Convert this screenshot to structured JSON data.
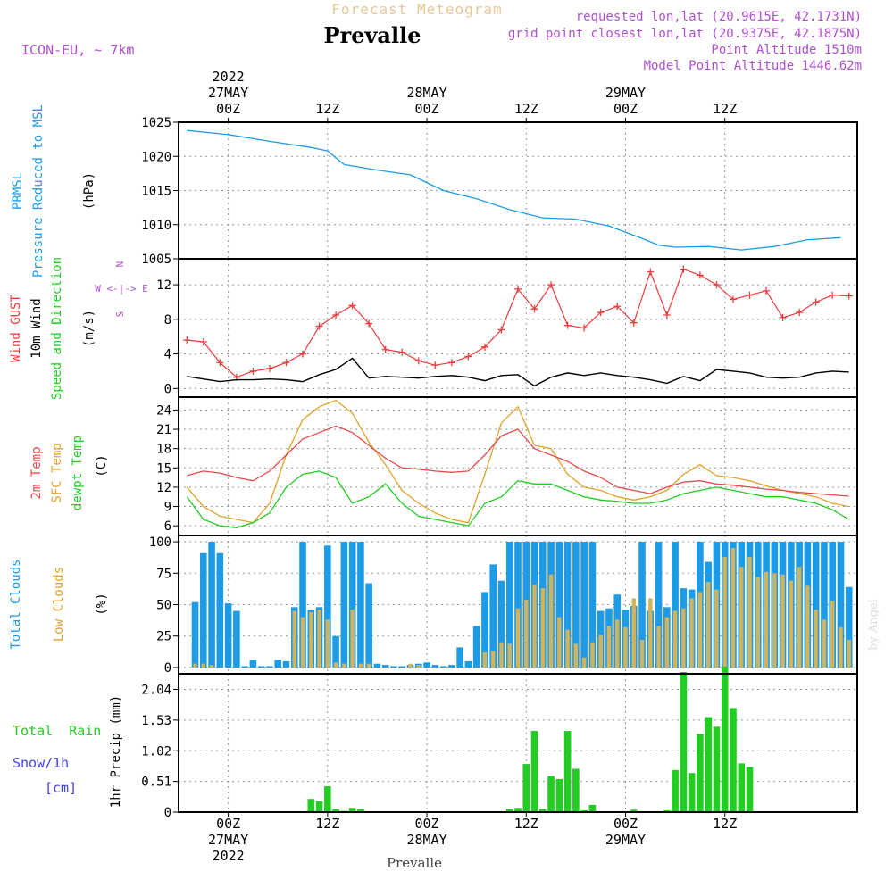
{
  "header": {
    "title_faint": "Forecast Meteogram",
    "title": "Prevalle",
    "model": "ICON-EU, ~ 7km",
    "info": [
      "requested lon,lat (20.9615E, 42.1731N)",
      "grid point closest lon,lat (20.9375E, 42.1875N)",
      "Point Altitude 1510m",
      "Model Point Altitude 1446.62m"
    ],
    "bottom_label": "Prevalle",
    "watermark": "by Angel"
  },
  "colors": {
    "pressure": "#1e9be6",
    "gust": "#ee3b3b",
    "wind": "#000000",
    "temp": "#e84a4a",
    "sfc": "#e0a32a",
    "dew": "#22cc22",
    "total_clouds": "#1e9be6",
    "low_clouds": "#d2b25a",
    "rain": "#22cc22",
    "snow": "#4040ee",
    "info": "#b050d0",
    "faint": "#e8c898"
  },
  "axes": {
    "top_ticks": [
      {
        "h": 0,
        "lines": [
          "2022",
          "27MAY",
          "00Z"
        ]
      },
      {
        "h": 12,
        "lines": [
          "12Z"
        ]
      },
      {
        "h": 24,
        "lines": [
          "28MAY",
          "00Z"
        ]
      },
      {
        "h": 36,
        "lines": [
          "12Z"
        ]
      },
      {
        "h": 48,
        "lines": [
          "29MAY",
          "00Z"
        ]
      },
      {
        "h": 60,
        "lines": [
          "12Z"
        ]
      }
    ],
    "bottom_ticks": [
      {
        "h": 0,
        "lines": [
          "00Z",
          "27MAY",
          "2022"
        ]
      },
      {
        "h": 12,
        "lines": [
          "12Z"
        ]
      },
      {
        "h": 24,
        "lines": [
          "00Z",
          "28MAY"
        ]
      },
      {
        "h": 36,
        "lines": [
          "12Z"
        ]
      },
      {
        "h": 48,
        "lines": [
          "00Z",
          "29MAY"
        ]
      },
      {
        "h": 60,
        "lines": [
          "12Z"
        ]
      }
    ]
  },
  "panels": {
    "pressure": {
      "labels": [
        "PRMSL",
        "Pressure Reduced to MSL"
      ],
      "unit": "(hPa)"
    },
    "wind": {
      "labels": [
        "Wind GUST",
        "10m Wind",
        "Speed and Direction"
      ],
      "unit": "(m/s)",
      "compass": [
        "N",
        "W <-|-> E",
        "S"
      ]
    },
    "temp": {
      "labels": [
        "2m Temp",
        "SFC Temp",
        "dewpt Temp"
      ],
      "unit": "(C)"
    },
    "clouds": {
      "labels": [
        "Total Clouds",
        "Low Clouds"
      ],
      "unit": "(%)"
    },
    "precip": {
      "labels": [
        "Total  Rain",
        "Snow/1h",
        "[cm]"
      ],
      "unit": "1hr Precip (mm)"
    }
  },
  "chart_data": [
    {
      "type": "line",
      "title": "PRMSL Pressure Reduced to MSL",
      "ylabel": "(hPa)",
      "ylim": [
        1005,
        1025
      ],
      "yticks": [
        1005,
        1010,
        1015,
        1020,
        1025
      ],
      "x_hours": [
        -5,
        0,
        5,
        10,
        12,
        14,
        18,
        22,
        26,
        30,
        34,
        38,
        42,
        46,
        50,
        52,
        54,
        58,
        62,
        66,
        70,
        74
      ],
      "series": [
        {
          "name": "PRMSL",
          "values": [
            1023.8,
            1023.2,
            1022.2,
            1021.3,
            1020.8,
            1018.8,
            1018.0,
            1017.3,
            1015.0,
            1013.8,
            1012.2,
            1011.0,
            1010.8,
            1009.8,
            1008.0,
            1007.0,
            1006.7,
            1006.8,
            1006.3,
            1006.8,
            1007.8,
            1008.1
          ]
        }
      ]
    },
    {
      "type": "line",
      "title": "Wind GUST / 10m Wind Speed and Direction",
      "ylabel": "(m/s)",
      "ylim": [
        -1,
        15
      ],
      "yticks": [
        0,
        4,
        8,
        12
      ],
      "x_hours": [
        -5,
        -3,
        -1,
        1,
        3,
        5,
        7,
        9,
        11,
        13,
        15,
        17,
        19,
        21,
        23,
        25,
        27,
        29,
        31,
        33,
        35,
        37,
        39,
        41,
        43,
        45,
        47,
        49,
        51,
        53,
        55,
        57,
        59,
        61,
        63,
        65,
        67,
        69,
        71,
        73,
        75
      ],
      "series": [
        {
          "name": "Wind GUST",
          "values": [
            5.6,
            5.4,
            3.0,
            1.3,
            2.0,
            2.3,
            3.0,
            4.0,
            7.2,
            8.5,
            9.6,
            7.5,
            4.5,
            4.2,
            3.2,
            2.7,
            3.0,
            3.7,
            4.8,
            6.8,
            11.5,
            9.2,
            12.0,
            7.3,
            7.0,
            8.8,
            9.5,
            7.6,
            13.5,
            8.5,
            13.8,
            13.1,
            12.0,
            10.3,
            10.8,
            11.3,
            8.2,
            8.8,
            10.0,
            10.8,
            10.7
          ]
        },
        {
          "name": "10m Wind",
          "values": [
            1.4,
            1.1,
            0.8,
            1.0,
            1.0,
            1.1,
            1.0,
            0.8,
            1.6,
            2.2,
            3.5,
            1.2,
            1.4,
            1.3,
            1.2,
            1.4,
            1.5,
            1.3,
            0.9,
            1.5,
            1.6,
            0.3,
            1.3,
            1.8,
            1.5,
            1.8,
            1.5,
            1.3,
            1.0,
            0.6,
            1.4,
            0.9,
            2.2,
            2.0,
            1.8,
            1.3,
            1.2,
            1.3,
            1.8,
            2.0,
            1.9
          ]
        }
      ]
    },
    {
      "type": "line",
      "title": "2m Temp / SFC Temp / dewpt Temp",
      "ylabel": "(C)",
      "ylim": [
        4.5,
        26
      ],
      "yticks": [
        6,
        9,
        12,
        15,
        18,
        21,
        24
      ],
      "x_hours": [
        -5,
        -3,
        -1,
        1,
        3,
        5,
        7,
        9,
        11,
        13,
        15,
        17,
        19,
        21,
        23,
        25,
        27,
        29,
        31,
        33,
        35,
        37,
        39,
        41,
        43,
        45,
        47,
        49,
        51,
        53,
        55,
        57,
        59,
        61,
        63,
        65,
        67,
        69,
        71,
        73,
        75
      ],
      "series": [
        {
          "name": "2m Temp",
          "values": [
            13.8,
            14.5,
            14.2,
            13.5,
            13.0,
            14.5,
            17.0,
            19.5,
            20.5,
            21.5,
            20.5,
            18.5,
            16.5,
            15.0,
            14.8,
            14.5,
            14.3,
            14.5,
            17.0,
            20.0,
            21.0,
            18.0,
            17.0,
            16.0,
            14.5,
            13.5,
            12.0,
            11.5,
            11.0,
            12.0,
            12.8,
            13.0,
            12.5,
            12.3,
            12.0,
            11.7,
            11.5,
            11.2,
            11.0,
            10.8,
            10.6
          ]
        },
        {
          "name": "SFC Temp",
          "values": [
            12.0,
            9.0,
            7.5,
            7.0,
            6.5,
            9.5,
            17.0,
            22.5,
            24.5,
            25.5,
            23.5,
            19.0,
            15.5,
            11.5,
            9.5,
            8.0,
            7.0,
            6.5,
            14.0,
            22.0,
            24.5,
            18.5,
            18.0,
            14.0,
            12.0,
            11.5,
            10.5,
            10.0,
            10.5,
            11.5,
            14.0,
            15.5,
            13.8,
            13.5,
            13.0,
            12.2,
            11.5,
            11.0,
            10.5,
            9.5,
            9.0
          ]
        },
        {
          "name": "dewpt Temp",
          "values": [
            10.5,
            7.0,
            6.0,
            5.7,
            6.5,
            8.0,
            12.0,
            14.0,
            14.5,
            13.5,
            9.5,
            10.5,
            12.5,
            9.5,
            7.5,
            7.0,
            6.5,
            6.0,
            9.5,
            10.5,
            13.0,
            12.5,
            12.5,
            11.5,
            10.5,
            10.0,
            9.8,
            9.5,
            9.5,
            10.0,
            11.0,
            11.5,
            12.0,
            11.5,
            11.0,
            10.5,
            10.5,
            10.0,
            9.5,
            8.5,
            7.0
          ]
        }
      ]
    },
    {
      "type": "bar",
      "title": "Total Clouds / Low Clouds",
      "ylabel": "(%)",
      "ylim": [
        -5,
        105
      ],
      "yticks": [
        0,
        25,
        50,
        75,
        100
      ],
      "x_hours": [
        -4,
        -3,
        -2,
        -1,
        0,
        1,
        2,
        3,
        4,
        5,
        6,
        7,
        8,
        9,
        10,
        11,
        12,
        13,
        14,
        15,
        16,
        17,
        18,
        19,
        20,
        21,
        22,
        23,
        24,
        25,
        26,
        27,
        28,
        29,
        30,
        31,
        32,
        33,
        34,
        35,
        36,
        37,
        38,
        39,
        40,
        41,
        42,
        43,
        44,
        45,
        46,
        47,
        48,
        49,
        50,
        51,
        52,
        53,
        54,
        55,
        56,
        57,
        58,
        59,
        60,
        61,
        62,
        63,
        64,
        65,
        66,
        67,
        68,
        69,
        70,
        71,
        72,
        73,
        74,
        75
      ],
      "series": [
        {
          "name": "Total Clouds",
          "values": [
            52,
            91,
            100,
            91,
            51,
            45,
            0,
            6,
            0,
            0,
            6,
            5,
            48,
            100,
            46,
            48,
            97,
            25,
            100,
            100,
            100,
            67,
            3,
            2,
            1,
            1,
            2,
            3,
            4,
            2,
            1,
            2,
            16,
            5,
            33,
            60,
            82,
            69,
            100,
            100,
            100,
            100,
            100,
            100,
            100,
            100,
            100,
            100,
            100,
            45,
            47,
            58,
            46,
            49,
            100,
            45,
            100,
            48,
            100,
            63,
            62,
            100,
            84,
            100,
            100,
            100,
            100,
            100,
            100,
            100,
            100,
            100,
            100,
            100,
            100,
            100,
            100,
            100,
            100,
            64
          ]
        },
        {
          "name": "Low Clouds",
          "values": [
            3,
            3,
            2,
            0,
            0,
            0,
            0,
            0,
            0,
            0,
            0,
            0,
            45,
            40,
            44,
            46,
            38,
            4,
            3,
            46,
            3,
            3,
            0,
            0,
            0,
            0,
            3,
            2,
            0,
            0,
            0,
            0,
            0,
            0,
            0,
            12,
            13,
            20,
            19,
            47,
            54,
            66,
            63,
            74,
            40,
            30,
            19,
            8,
            20,
            26,
            33,
            38,
            32,
            55,
            22,
            55,
            33,
            40,
            45,
            47,
            55,
            60,
            68,
            62,
            88,
            95,
            80,
            88,
            72,
            76,
            75,
            74,
            69,
            80,
            65,
            46,
            38,
            53,
            32,
            22
          ]
        }
      ]
    },
    {
      "type": "bar",
      "title": "1hr Precip",
      "ylabel": "1hr Precip (mm)",
      "ylim": [
        0,
        2.3
      ],
      "yticks": [
        0,
        0.51,
        1.02,
        1.53,
        2.04
      ],
      "x_hours": [
        10,
        11,
        12,
        13,
        14,
        15,
        16,
        34,
        35,
        36,
        37,
        38,
        39,
        40,
        41,
        42,
        43,
        44,
        49,
        53,
        54,
        55,
        56,
        57,
        58,
        59,
        60,
        61,
        62,
        63,
        64
      ],
      "series": [
        {
          "name": "Total Rain",
          "values": [
            0.22,
            0.18,
            0.43,
            0.05,
            0.02,
            0.07,
            0.05,
            0.05,
            0.07,
            0.8,
            1.35,
            0.05,
            0.6,
            0.55,
            1.35,
            0.72,
            0.03,
            0.12,
            0.04,
            0.03,
            0.7,
            2.33,
            0.65,
            1.3,
            1.58,
            1.42,
            2.42,
            1.73,
            0.81,
            0.75,
            0.0
          ]
        }
      ]
    }
  ]
}
